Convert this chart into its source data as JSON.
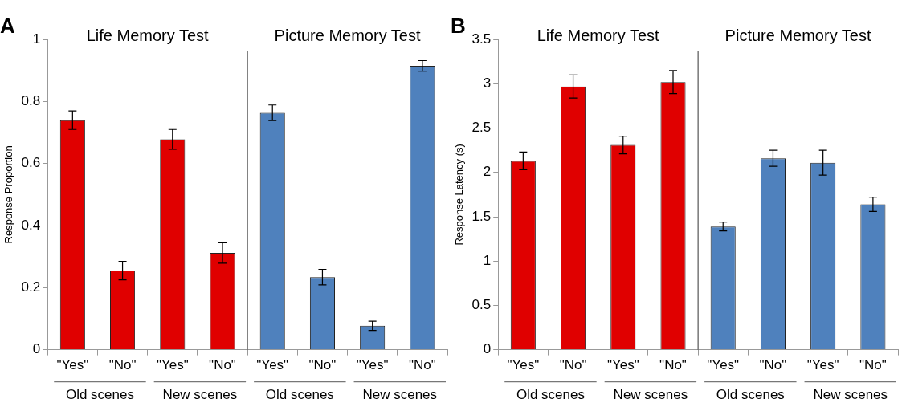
{
  "chart_data": [
    {
      "type": "bar",
      "title": "A",
      "ylabel": "Response Proportion",
      "categories": [
        "\"Yes\"",
        "\"No\"",
        "\"Yes\"",
        "\"No\"",
        "\"Yes\"",
        "\"No\"",
        "\"Yes\"",
        "\"No\""
      ],
      "values": [
        0.74,
        0.255,
        0.678,
        0.312,
        0.764,
        0.234,
        0.077,
        0.915
      ],
      "errors": [
        0.03,
        0.03,
        0.032,
        0.033,
        0.025,
        0.025,
        0.015,
        0.017
      ],
      "colors": [
        "#e00000",
        "#e00000",
        "#e00000",
        "#e00000",
        "#4f81bd",
        "#4f81bd",
        "#4f81bd",
        "#4f81bd"
      ],
      "ylim": [
        0,
        1
      ],
      "yticks": [
        0,
        0.2,
        0.4,
        0.6,
        0.8,
        1
      ],
      "annotations": [
        "Life Memory Test",
        "Picture Memory Test",
        "Old scenes",
        "New scenes",
        "Old scenes",
        "New scenes"
      ]
    },
    {
      "type": "bar",
      "title": "B",
      "ylabel": "Response Latency (s)",
      "categories": [
        "\"Yes\"",
        "\"No\"",
        "\"Yes\"",
        "\"No\"",
        "\"Yes\"",
        "\"No\"",
        "\"Yes\"",
        "\"No\""
      ],
      "values": [
        2.13,
        2.97,
        2.31,
        3.02,
        1.39,
        2.16,
        2.11,
        1.64
      ],
      "errors": [
        0.1,
        0.13,
        0.1,
        0.13,
        0.05,
        0.09,
        0.14,
        0.08
      ],
      "colors": [
        "#e00000",
        "#e00000",
        "#e00000",
        "#e00000",
        "#4f81bd",
        "#4f81bd",
        "#4f81bd",
        "#4f81bd"
      ],
      "ylim": [
        0,
        3.5
      ],
      "yticks": [
        0,
        0.5,
        1,
        1.5,
        2,
        2.5,
        3,
        3.5
      ],
      "annotations": [
        "Life Memory Test",
        "Picture Memory Test",
        "Old scenes",
        "New scenes",
        "Old scenes",
        "New scenes"
      ]
    }
  ]
}
